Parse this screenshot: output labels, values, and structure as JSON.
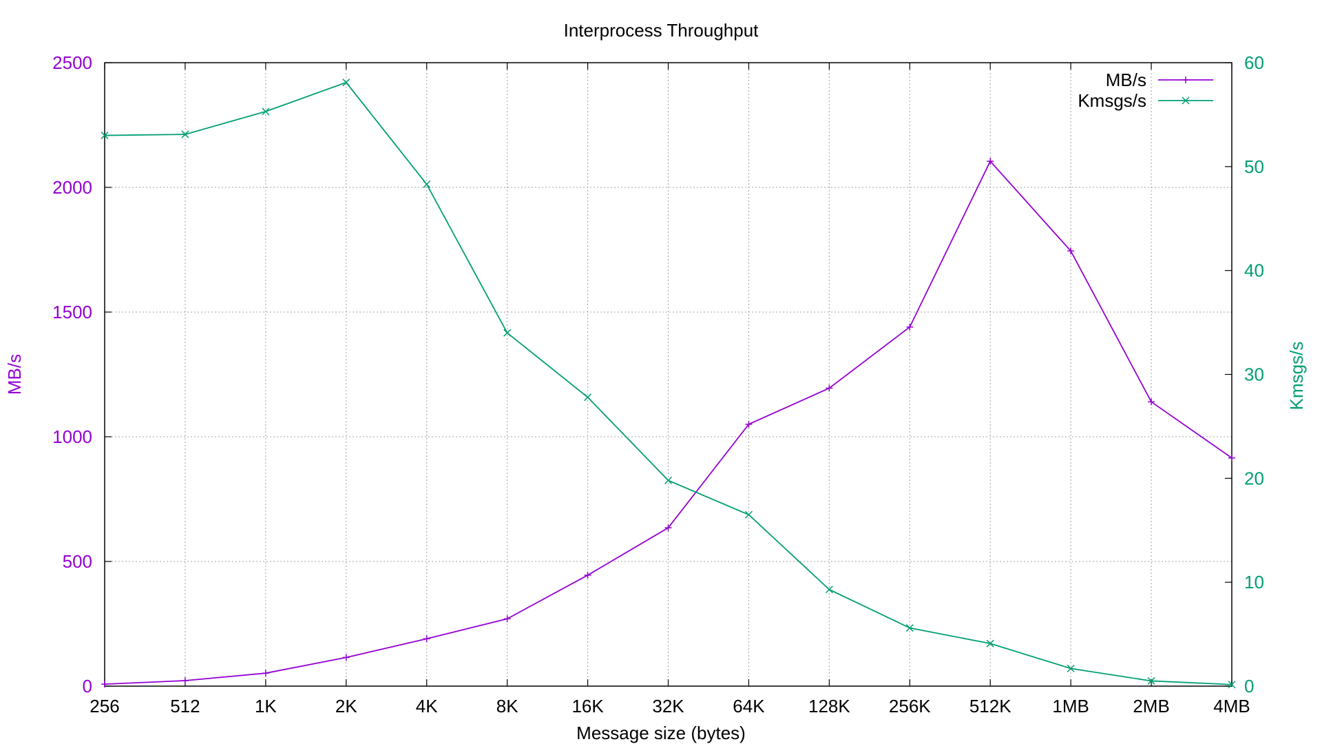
{
  "chart_data": {
    "type": "line",
    "title": "Interprocess Throughput",
    "xlabel": "Message size (bytes)",
    "ylabel": "MB/s",
    "y2label": "Kmsgs/s",
    "categories": [
      "256",
      "512",
      "1K",
      "2K",
      "4K",
      "8K",
      "16K",
      "32K",
      "64K",
      "128K",
      "256K",
      "512K",
      "1MB",
      "2MB",
      "4MB"
    ],
    "ylim": [
      0,
      2500
    ],
    "y2lim": [
      0,
      60
    ],
    "yticks": [
      "0",
      "500",
      "1000",
      "1500",
      "2000",
      "2500"
    ],
    "y2ticks": [
      "0",
      "10",
      "20",
      "30",
      "40",
      "50",
      "60"
    ],
    "grid": true,
    "legend_position": "top-right",
    "series": [
      {
        "name": "MB/s",
        "axis": "left",
        "color": "#9400d3",
        "marker": "plus",
        "values": [
          8,
          22,
          52,
          115,
          190,
          270,
          445,
          635,
          1050,
          1195,
          1440,
          2105,
          1745,
          1140,
          915
        ]
      },
      {
        "name": "Kmsgs/s",
        "axis": "right",
        "color": "#009e73",
        "marker": "cross",
        "values": [
          53.0,
          53.1,
          55.3,
          58.1,
          48.3,
          34.0,
          27.8,
          19.8,
          16.5,
          9.3,
          5.6,
          4.1,
          1.7,
          0.5,
          0.15
        ]
      }
    ]
  }
}
